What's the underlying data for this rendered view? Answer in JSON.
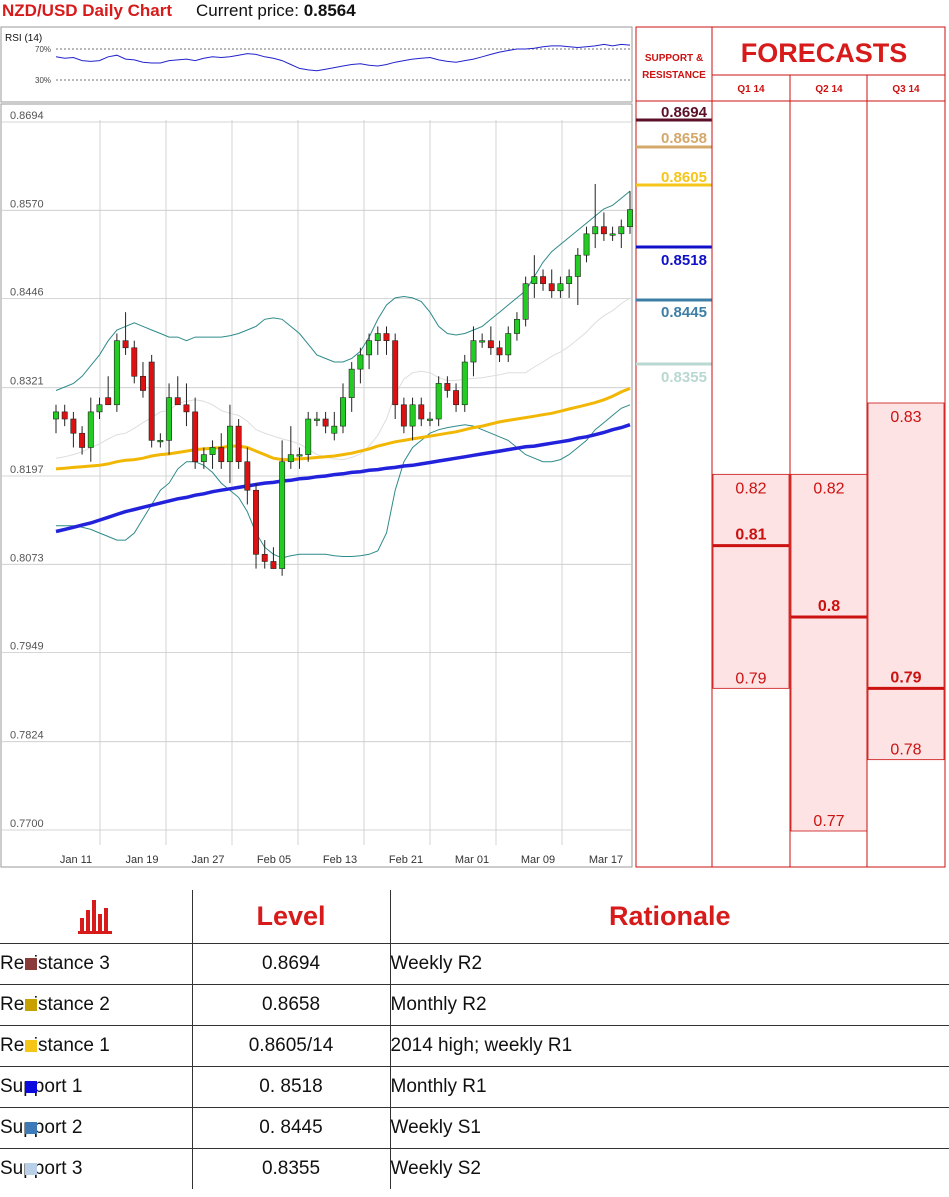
{
  "header": {
    "title": "NZD/USD Daily Chart",
    "price_label": "Current price:",
    "price_value": "0.8564"
  },
  "rsi": {
    "label": "RSI (14)",
    "levels": [
      "70%",
      "30%"
    ],
    "values": [
      60,
      58,
      59,
      55,
      54,
      55,
      60,
      62,
      57,
      56,
      53,
      52,
      52,
      55,
      56,
      57,
      55,
      58,
      60,
      59,
      60,
      62,
      64,
      63,
      60,
      58,
      55,
      50,
      45,
      43,
      42,
      44,
      46,
      48,
      50,
      51,
      49,
      48,
      50,
      53,
      55,
      57,
      58,
      59,
      56,
      54,
      53,
      55,
      57,
      60,
      63,
      66,
      68,
      70,
      70,
      71,
      73,
      74,
      74,
      73,
      72,
      73,
      74,
      76,
      74,
      76,
      75
    ]
  },
  "support_resistance": {
    "header_line1": "SUPPORT &",
    "header_line2": "RESISTANCE",
    "levels": [
      {
        "value": 0.8694,
        "label": "0.8694",
        "color": "#5b1028"
      },
      {
        "value": 0.8658,
        "label": "0.8658",
        "color": "#d4a86a"
      },
      {
        "value": 0.8605,
        "label": "0.8605",
        "color": "#f5c518"
      },
      {
        "value": 0.8518,
        "label": "0.8518",
        "color": "#1010c8"
      },
      {
        "value": 0.8445,
        "label": "0.8445",
        "color": "#3d7ea6"
      },
      {
        "value": 0.8355,
        "label": "0.8355",
        "color": "#b8d8d0"
      }
    ]
  },
  "forecasts": {
    "title": "FORECASTS",
    "columns": [
      {
        "label": "Q1 14",
        "high": 0.82,
        "high_label": "0.82",
        "mid": 0.81,
        "mid_label": "0.81",
        "low": 0.79,
        "low_label": "0.79"
      },
      {
        "label": "Q2 14",
        "high": 0.82,
        "high_label": "0.82",
        "mid": 0.8,
        "mid_label": "0.8",
        "low": 0.77,
        "low_label": "0.77"
      },
      {
        "label": "Q3 14",
        "high": 0.83,
        "high_label": "0.83",
        "mid": 0.79,
        "mid_label": "0.79",
        "low": 0.78,
        "low_label": "0.78"
      }
    ]
  },
  "chart_data": {
    "type": "candlestick",
    "title": "NZD/USD Daily Chart",
    "y_ticks": [
      "0.8694",
      "0.8570",
      "0.8446",
      "0.8321",
      "0.8197",
      "0.8073",
      "0.7949",
      "0.7824",
      "0.7700"
    ],
    "ylim": [
      0.77,
      0.8694
    ],
    "x_ticks": [
      "Jan 11",
      "Jan 19",
      "Jan 27",
      "Feb 05",
      "Feb 13",
      "Feb 21",
      "Mar 01",
      "Mar 09",
      "Mar 17"
    ],
    "grid": true,
    "candles": [
      [
        0.827,
        0.829,
        0.825,
        0.828
      ],
      [
        0.828,
        0.829,
        0.826,
        0.827
      ],
      [
        0.827,
        0.828,
        0.823,
        0.825
      ],
      [
        0.825,
        0.826,
        0.822,
        0.823
      ],
      [
        0.823,
        0.83,
        0.821,
        0.828
      ],
      [
        0.828,
        0.83,
        0.827,
        0.829
      ],
      [
        0.83,
        0.833,
        0.829,
        0.829
      ],
      [
        0.829,
        0.839,
        0.828,
        0.838
      ],
      [
        0.838,
        0.842,
        0.836,
        0.837
      ],
      [
        0.837,
        0.838,
        0.832,
        0.833
      ],
      [
        0.833,
        0.835,
        0.83,
        0.831
      ],
      [
        0.835,
        0.836,
        0.823,
        0.824
      ],
      [
        0.824,
        0.825,
        0.823,
        0.824
      ],
      [
        0.824,
        0.832,
        0.822,
        0.83
      ],
      [
        0.83,
        0.833,
        0.829,
        0.829
      ],
      [
        0.829,
        0.832,
        0.826,
        0.828
      ],
      [
        0.828,
        0.83,
        0.82,
        0.821
      ],
      [
        0.821,
        0.823,
        0.82,
        0.822
      ],
      [
        0.822,
        0.824,
        0.82,
        0.823
      ],
      [
        0.823,
        0.825,
        0.82,
        0.821
      ],
      [
        0.821,
        0.829,
        0.818,
        0.826
      ],
      [
        0.826,
        0.827,
        0.82,
        0.821
      ],
      [
        0.821,
        0.823,
        0.815,
        0.817
      ],
      [
        0.817,
        0.818,
        0.806,
        0.808
      ],
      [
        0.808,
        0.81,
        0.806,
        0.807
      ],
      [
        0.807,
        0.809,
        0.806,
        0.806
      ],
      [
        0.806,
        0.824,
        0.805,
        0.821
      ],
      [
        0.821,
        0.826,
        0.82,
        0.822
      ],
      [
        0.822,
        0.823,
        0.82,
        0.822
      ],
      [
        0.822,
        0.828,
        0.821,
        0.827
      ],
      [
        0.827,
        0.828,
        0.826,
        0.827
      ],
      [
        0.827,
        0.828,
        0.825,
        0.826
      ],
      [
        0.825,
        0.828,
        0.824,
        0.826
      ],
      [
        0.826,
        0.832,
        0.825,
        0.83
      ],
      [
        0.83,
        0.835,
        0.828,
        0.834
      ],
      [
        0.834,
        0.837,
        0.832,
        0.836
      ],
      [
        0.836,
        0.839,
        0.834,
        0.838
      ],
      [
        0.838,
        0.84,
        0.836,
        0.839
      ],
      [
        0.839,
        0.84,
        0.836,
        0.838
      ],
      [
        0.838,
        0.839,
        0.827,
        0.829
      ],
      [
        0.829,
        0.83,
        0.825,
        0.826
      ],
      [
        0.826,
        0.83,
        0.824,
        0.829
      ],
      [
        0.829,
        0.83,
        0.826,
        0.827
      ],
      [
        0.827,
        0.828,
        0.826,
        0.827
      ],
      [
        0.827,
        0.833,
        0.826,
        0.832
      ],
      [
        0.832,
        0.833,
        0.83,
        0.831
      ],
      [
        0.831,
        0.832,
        0.828,
        0.829
      ],
      [
        0.829,
        0.836,
        0.828,
        0.835
      ],
      [
        0.835,
        0.84,
        0.833,
        0.838
      ],
      [
        0.838,
        0.839,
        0.837,
        0.838
      ],
      [
        0.838,
        0.84,
        0.836,
        0.837
      ],
      [
        0.837,
        0.838,
        0.835,
        0.836
      ],
      [
        0.836,
        0.84,
        0.835,
        0.839
      ],
      [
        0.839,
        0.842,
        0.838,
        0.841
      ],
      [
        0.841,
        0.847,
        0.84,
        0.846
      ],
      [
        0.846,
        0.85,
        0.844,
        0.847
      ],
      [
        0.847,
        0.848,
        0.845,
        0.846
      ],
      [
        0.846,
        0.848,
        0.844,
        0.845
      ],
      [
        0.845,
        0.847,
        0.844,
        0.846
      ],
      [
        0.846,
        0.848,
        0.844,
        0.847
      ],
      [
        0.847,
        0.851,
        0.843,
        0.85
      ],
      [
        0.85,
        0.854,
        0.849,
        0.853
      ],
      [
        0.853,
        0.86,
        0.851,
        0.854
      ],
      [
        0.854,
        0.856,
        0.852,
        0.853
      ],
      [
        0.853,
        0.854,
        0.852,
        0.853
      ],
      [
        0.853,
        0.855,
        0.851,
        0.854
      ],
      [
        0.854,
        0.859,
        0.853,
        0.8564
      ]
    ],
    "ma_yellow": [
      0.82,
      0.8201,
      0.8202,
      0.8203,
      0.8204,
      0.8205,
      0.8207,
      0.821,
      0.8212,
      0.8213,
      0.8215,
      0.8218,
      0.822,
      0.8221,
      0.8223,
      0.8225,
      0.8227,
      0.8228,
      0.8229,
      0.823,
      0.8232,
      0.8232,
      0.823,
      0.8225,
      0.822,
      0.8215,
      0.8213,
      0.8213,
      0.8214,
      0.8215,
      0.8216,
      0.8217,
      0.8218,
      0.822,
      0.8222,
      0.8225,
      0.8228,
      0.8232,
      0.8235,
      0.8238,
      0.824,
      0.8242,
      0.8244,
      0.8246,
      0.8248,
      0.825,
      0.8252,
      0.8255,
      0.8258,
      0.826,
      0.8263,
      0.8266,
      0.8268,
      0.827,
      0.8272,
      0.8274,
      0.8276,
      0.8278,
      0.8281,
      0.8284,
      0.8287,
      0.829,
      0.8293,
      0.8297,
      0.8302,
      0.8308,
      0.8313
    ],
    "ma_blue": [
      0.8112,
      0.8115,
      0.8118,
      0.8121,
      0.8124,
      0.8128,
      0.8132,
      0.8136,
      0.814,
      0.8143,
      0.8146,
      0.8149,
      0.8152,
      0.8155,
      0.8158,
      0.816,
      0.8163,
      0.8165,
      0.8168,
      0.817,
      0.8172,
      0.8174,
      0.8176,
      0.8178,
      0.818,
      0.8181,
      0.8183,
      0.8184,
      0.8186,
      0.8187,
      0.8189,
      0.819,
      0.8192,
      0.8193,
      0.8195,
      0.8196,
      0.8198,
      0.8199,
      0.8201,
      0.8202,
      0.8204,
      0.8205,
      0.8207,
      0.8209,
      0.8211,
      0.8213,
      0.8215,
      0.8217,
      0.8219,
      0.8221,
      0.8223,
      0.8225,
      0.8227,
      0.8229,
      0.8231,
      0.8232,
      0.8234,
      0.8236,
      0.8238,
      0.824,
      0.8243,
      0.8245,
      0.8248,
      0.8251,
      0.8255,
      0.8258,
      0.8262
    ],
    "bb_upper": [
      0.831,
      0.8315,
      0.832,
      0.833,
      0.8345,
      0.836,
      0.838,
      0.8395,
      0.84,
      0.8405,
      0.84,
      0.8395,
      0.839,
      0.8385,
      0.8385,
      0.838,
      0.8385,
      0.8385,
      0.8385,
      0.8385,
      0.8387,
      0.839,
      0.8395,
      0.84,
      0.841,
      0.8412,
      0.841,
      0.84,
      0.839,
      0.8375,
      0.836,
      0.8355,
      0.835,
      0.835,
      0.8355,
      0.8365,
      0.8385,
      0.841,
      0.843,
      0.844,
      0.8442,
      0.844,
      0.8435,
      0.842,
      0.84,
      0.839,
      0.8388,
      0.839,
      0.8395,
      0.84,
      0.841,
      0.842,
      0.843,
      0.844,
      0.845,
      0.847,
      0.849,
      0.8505,
      0.8515,
      0.8525,
      0.8535,
      0.8545,
      0.8555,
      0.8565,
      0.857,
      0.858,
      0.859
    ],
    "bb_lower": [
      0.812,
      0.812,
      0.812,
      0.8118,
      0.8115,
      0.811,
      0.8105,
      0.81,
      0.81,
      0.811,
      0.813,
      0.815,
      0.817,
      0.818,
      0.82,
      0.821,
      0.821,
      0.8205,
      0.8195,
      0.818,
      0.817,
      0.816,
      0.814,
      0.811,
      0.809,
      0.808,
      0.8075,
      0.8078,
      0.808,
      0.808,
      0.808,
      0.808,
      0.8078,
      0.8077,
      0.8077,
      0.8078,
      0.808,
      0.8085,
      0.811,
      0.817,
      0.821,
      0.823,
      0.824,
      0.825,
      0.8255,
      0.8258,
      0.826,
      0.8262,
      0.826,
      0.8255,
      0.825,
      0.8245,
      0.824,
      0.823,
      0.822,
      0.8215,
      0.821,
      0.821,
      0.8213,
      0.822,
      0.823,
      0.824,
      0.8255,
      0.8265,
      0.8275,
      0.8285,
      0.829
    ],
    "bb_mid": [
      0.8215,
      0.8217,
      0.822,
      0.8224,
      0.823,
      0.8235,
      0.8242,
      0.8248,
      0.825,
      0.8257,
      0.8265,
      0.8272,
      0.828,
      0.8282,
      0.8292,
      0.8295,
      0.8297,
      0.8295,
      0.829,
      0.8282,
      0.8278,
      0.8275,
      0.8267,
      0.8255,
      0.825,
      0.8246,
      0.8242,
      0.8239,
      0.8235,
      0.8228,
      0.822,
      0.8217,
      0.8214,
      0.8213,
      0.8216,
      0.8221,
      0.8232,
      0.8247,
      0.827,
      0.8305,
      0.8326,
      0.8335,
      0.8337,
      0.8335,
      0.8328,
      0.8324,
      0.8324,
      0.8326,
      0.8327,
      0.8328,
      0.833,
      0.8332,
      0.8335,
      0.8335,
      0.8335,
      0.8343,
      0.835,
      0.8358,
      0.8364,
      0.8372,
      0.8382,
      0.8392,
      0.8405,
      0.8415,
      0.8422,
      0.8432,
      0.844
    ]
  },
  "table": {
    "headers": {
      "level": "Level",
      "rationale": "Rationale"
    },
    "rows": [
      {
        "name": "Resistance 3",
        "level": "0.8694",
        "rationale": "Weekly R2",
        "color": "#8b3a3a"
      },
      {
        "name": "Resistance 2",
        "level": "0.8658",
        "rationale": "Monthly R2",
        "color": "#c8a000"
      },
      {
        "name": "Resistance 1",
        "level": "0.8605/14",
        "rationale": "2014 high; weekly R1",
        "color": "#f5c518"
      },
      {
        "name": "Support 1",
        "level": "0. 8518",
        "rationale": "Monthly R1",
        "color": "#0a0ae0"
      },
      {
        "name": "Support 2",
        "level": "0. 8445",
        "rationale": "Weekly S1",
        "color": "#3d7ab8"
      },
      {
        "name": "Support 3",
        "level": "0.8355",
        "rationale": "Weekly S2",
        "color": "#b8cfe8"
      }
    ]
  }
}
